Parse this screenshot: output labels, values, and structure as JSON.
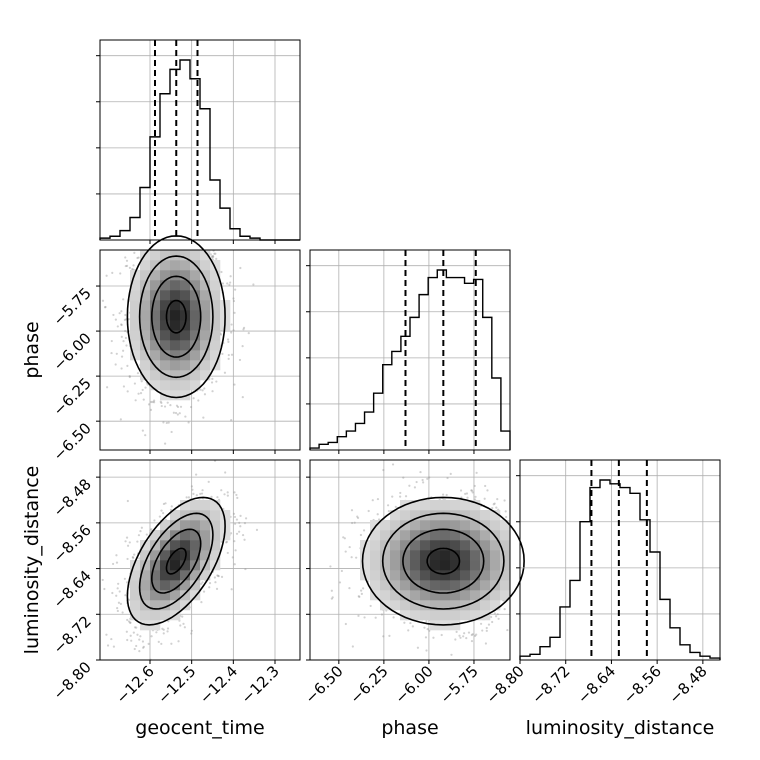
{
  "chart_data": {
    "type": "corner",
    "parameters": [
      "geocent_time",
      "phase",
      "luminosity_distance"
    ],
    "axis_labels": {
      "geocent_time": "geocent_time",
      "phase": "phase",
      "luminosity_distance": "luminosity_distance"
    },
    "ranges": {
      "geocent_time": [
        -12.72,
        -12.24
      ],
      "phase": [
        -6.66,
        -5.55
      ],
      "luminosity_distance": [
        -8.8,
        -8.45
      ]
    },
    "ticks": {
      "geocent_time": {
        "values": [
          -12.6,
          -12.5,
          -12.4,
          -12.3
        ],
        "labels": [
          "−12.6",
          "−12.5",
          "−12.4",
          "−12.3"
        ]
      },
      "phase": {
        "values": [
          -6.5,
          -6.25,
          -6.0,
          -5.75
        ],
        "labels": [
          "−6.50",
          "−6.25",
          "−6.00",
          "−5.75"
        ]
      },
      "luminosity_distance": {
        "values": [
          -8.8,
          -8.72,
          -8.64,
          -8.56,
          -8.48
        ],
        "labels": [
          "−8.80",
          "−8.72",
          "−8.64",
          "−8.56",
          "−8.48"
        ]
      }
    },
    "quantiles": {
      "geocent_time": [
        -12.588,
        -12.537,
        -12.486
      ],
      "phase": [
        -6.13,
        -5.92,
        -5.74
      ],
      "luminosity_distance": [
        -8.675,
        -8.627,
        -8.578
      ]
    },
    "histograms": {
      "geocent_time": [
        1,
        2,
        5,
        12,
        28,
        55,
        78,
        91,
        96,
        86,
        70,
        32,
        17,
        6,
        2,
        1,
        0,
        0,
        0,
        0
      ],
      "phase": [
        1,
        3,
        4,
        7,
        10,
        14,
        20,
        30,
        45,
        52,
        60,
        70,
        82,
        91,
        95,
        91,
        91,
        88,
        90,
        70,
        38,
        10
      ],
      "luminosity_distance": [
        2,
        3,
        7,
        12,
        28,
        42,
        73,
        91,
        95,
        93,
        91,
        88,
        74,
        57,
        32,
        17,
        8,
        4,
        2,
        1
      ]
    },
    "correlations": {
      "phase|geocent_time": 0.0,
      "luminosity_distance|geocent_time": 0.55,
      "luminosity_distance|phase": 0.0
    },
    "grid": true
  }
}
